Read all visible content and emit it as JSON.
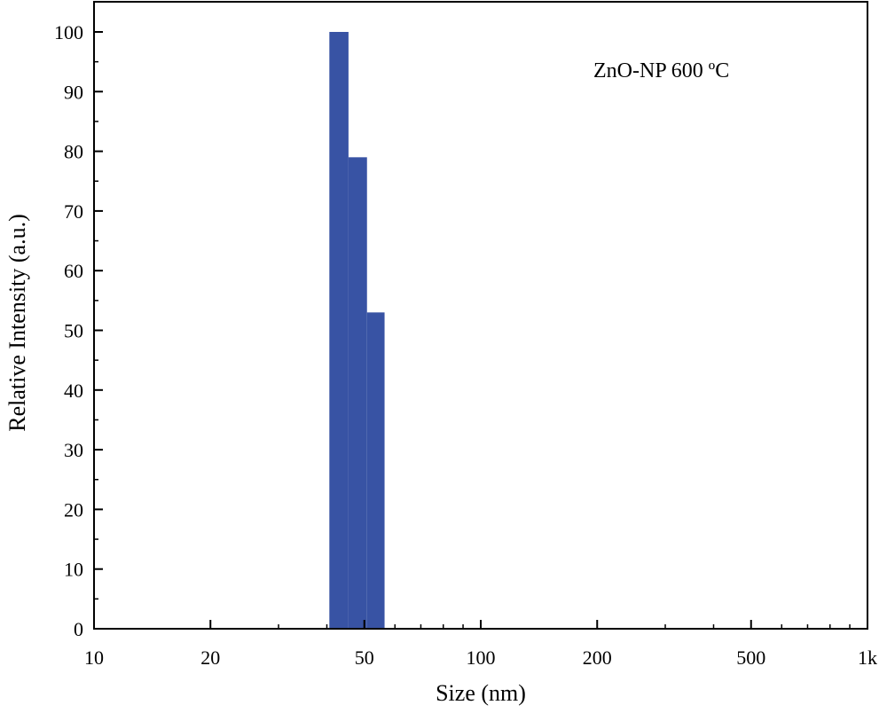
{
  "chart_data": {
    "type": "bar",
    "title": "",
    "annotation": "ZnO-NP 600 ºC",
    "xlabel": "Size (nm)",
    "ylabel": "Relative Intensity (a.u.)",
    "x_scale": "log",
    "xlim": [
      10,
      1000
    ],
    "ylim": [
      0,
      105
    ],
    "x_ticks": [
      {
        "value": 10,
        "label": "10"
      },
      {
        "value": 20,
        "label": "20"
      },
      {
        "value": 50,
        "label": "50"
      },
      {
        "value": 100,
        "label": "100"
      },
      {
        "value": 200,
        "label": "200"
      },
      {
        "value": 500,
        "label": "500"
      },
      {
        "value": 1000,
        "label": "1k"
      }
    ],
    "y_ticks": [
      0,
      10,
      20,
      30,
      40,
      50,
      60,
      70,
      80,
      90,
      100
    ],
    "bins": [
      {
        "x_start": 40.6,
        "x_end": 45.5,
        "value": 100
      },
      {
        "x_start": 45.5,
        "x_end": 50.8,
        "value": 79
      },
      {
        "x_start": 50.8,
        "x_end": 56.4,
        "value": 53
      }
    ],
    "bar_color": "#3853a4",
    "grid": false,
    "legend": "none"
  }
}
